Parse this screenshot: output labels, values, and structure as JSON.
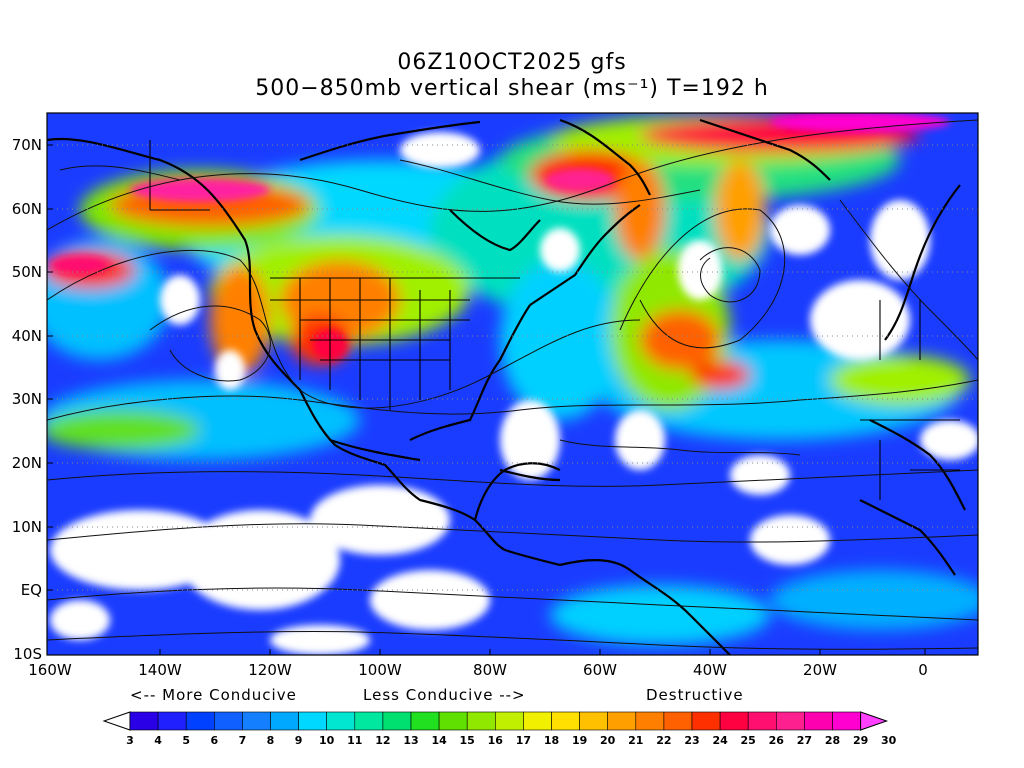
{
  "title_line1": "06Z10OCT2025 gfs",
  "title_line2": "500−850mb vertical shear (ms⁻¹) T=192 h",
  "y_axis_labels": [
    "70N",
    "60N",
    "50N",
    "40N",
    "30N",
    "20N",
    "10N",
    "EQ",
    "10S"
  ],
  "x_axis_labels": [
    "160W",
    "140W",
    "120W",
    "100W",
    "80W",
    "60W",
    "40W",
    "20W",
    "0"
  ],
  "hint_more": "<-- More Conducive",
  "hint_less": "Less Conducive -->",
  "hint_destructive": "Destructive",
  "colorbar": {
    "levels": [
      "3",
      "4",
      "5",
      "6",
      "7",
      "8",
      "9",
      "10",
      "11",
      "12",
      "13",
      "14",
      "15",
      "16",
      "17",
      "18",
      "19",
      "20",
      "21",
      "22",
      "23",
      "24",
      "25",
      "26",
      "27",
      "28",
      "29",
      "30"
    ],
    "colors": [
      "#ffffff",
      "#2a00e6",
      "#2020ff",
      "#0040ff",
      "#1060ff",
      "#1580ff",
      "#00a8ff",
      "#00d8ff",
      "#00e6d0",
      "#00e8a0",
      "#00e070",
      "#20e020",
      "#60e000",
      "#90e800",
      "#c0f000",
      "#f0f000",
      "#ffe000",
      "#ffc000",
      "#ffa000",
      "#ff8000",
      "#ff6000",
      "#ff3000",
      "#ff0040",
      "#ff1070",
      "#ff2090",
      "#ff00b0",
      "#ff00d0",
      "#ff40ff"
    ]
  },
  "units": "ms-1",
  "field_colors": {
    "land": "#000000",
    "background": "#ffffff"
  }
}
